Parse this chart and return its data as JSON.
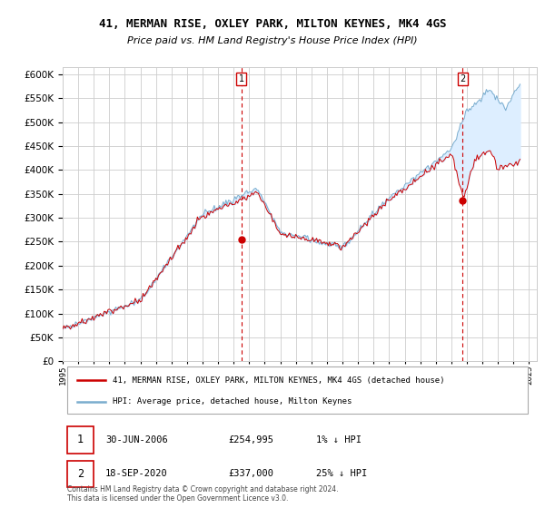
{
  "title": "41, MERMAN RISE, OXLEY PARK, MILTON KEYNES, MK4 4GS",
  "subtitle": "Price paid vs. HM Land Registry's House Price Index (HPI)",
  "ylabel_ticks": [
    0,
    50000,
    100000,
    150000,
    200000,
    250000,
    300000,
    350000,
    400000,
    450000,
    500000,
    550000,
    600000
  ],
  "ylim": [
    0,
    615000
  ],
  "xlim_start": 1995.0,
  "xlim_end": 2025.5,
  "transaction1_year": 2006.496,
  "transaction1_price": 254995,
  "transaction2_year": 2020.717,
  "transaction2_price": 337000,
  "legend_line1": "41, MERMAN RISE, OXLEY PARK, MILTON KEYNES, MK4 4GS (detached house)",
  "legend_line2": "HPI: Average price, detached house, Milton Keynes",
  "footer": "Contains HM Land Registry data © Crown copyright and database right 2024.\nThis data is licensed under the Open Government Licence v3.0.",
  "red_line_color": "#cc0000",
  "blue_line_color": "#7aadce",
  "fill_color": "#ddeeff",
  "grid_color": "#cccccc",
  "bg_color": "#ffffff"
}
